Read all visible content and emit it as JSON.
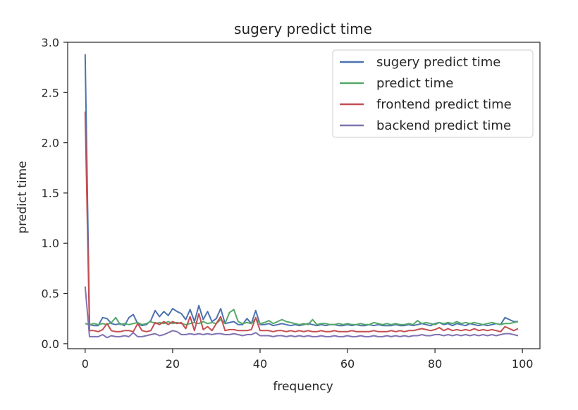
{
  "chart_data": {
    "type": "line",
    "title": "sugery predict time",
    "xlabel": "frequency",
    "ylabel": "predict time",
    "xlim": [
      -4,
      104
    ],
    "ylim": [
      -0.05,
      3.0
    ],
    "xticks": [
      0,
      20,
      40,
      60,
      80,
      100
    ],
    "yticks": [
      0.0,
      0.5,
      1.0,
      1.5,
      2.0,
      2.5,
      3.0
    ],
    "ytick_labels": [
      "0.0",
      "0.5",
      "1.0",
      "1.5",
      "2.0",
      "2.5",
      "3.0"
    ],
    "grid": false,
    "legend_position": "top-right",
    "x": [
      0,
      1,
      2,
      3,
      4,
      5,
      6,
      7,
      8,
      9,
      10,
      11,
      12,
      13,
      14,
      15,
      16,
      17,
      18,
      19,
      20,
      21,
      22,
      23,
      24,
      25,
      26,
      27,
      28,
      29,
      30,
      31,
      32,
      33,
      34,
      35,
      36,
      37,
      38,
      39,
      40,
      41,
      42,
      43,
      44,
      45,
      46,
      47,
      48,
      49,
      50,
      51,
      52,
      53,
      54,
      55,
      56,
      57,
      58,
      59,
      60,
      61,
      62,
      63,
      64,
      65,
      66,
      67,
      68,
      69,
      70,
      71,
      72,
      73,
      74,
      75,
      76,
      77,
      78,
      79,
      80,
      81,
      82,
      83,
      84,
      85,
      86,
      87,
      88,
      89,
      90,
      91,
      92,
      93,
      94,
      95,
      96,
      97,
      98,
      99
    ],
    "series": [
      {
        "name": "sugery predict time",
        "color": "#4c72b0",
        "values": [
          2.88,
          0.19,
          0.18,
          0.18,
          0.26,
          0.25,
          0.2,
          0.19,
          0.2,
          0.18,
          0.26,
          0.29,
          0.2,
          0.18,
          0.19,
          0.23,
          0.33,
          0.27,
          0.32,
          0.28,
          0.35,
          0.32,
          0.3,
          0.24,
          0.34,
          0.22,
          0.38,
          0.24,
          0.32,
          0.22,
          0.25,
          0.35,
          0.2,
          0.21,
          0.22,
          0.19,
          0.19,
          0.25,
          0.2,
          0.33,
          0.19,
          0.19,
          0.2,
          0.18,
          0.19,
          0.2,
          0.19,
          0.18,
          0.19,
          0.18,
          0.19,
          0.2,
          0.19,
          0.18,
          0.19,
          0.18,
          0.19,
          0.19,
          0.18,
          0.18,
          0.19,
          0.18,
          0.19,
          0.18,
          0.18,
          0.19,
          0.18,
          0.19,
          0.18,
          0.18,
          0.18,
          0.19,
          0.18,
          0.18,
          0.19,
          0.18,
          0.19,
          0.2,
          0.19,
          0.18,
          0.2,
          0.21,
          0.19,
          0.2,
          0.18,
          0.2,
          0.19,
          0.18,
          0.2,
          0.19,
          0.18,
          0.19,
          0.18,
          0.19,
          0.2,
          0.19,
          0.26,
          0.24,
          0.22,
          0.22
        ]
      },
      {
        "name": "predict time",
        "color": "#55a868",
        "values": [
          0.2,
          0.19,
          0.2,
          0.19,
          0.2,
          0.19,
          0.21,
          0.26,
          0.19,
          0.2,
          0.19,
          0.2,
          0.21,
          0.19,
          0.2,
          0.22,
          0.2,
          0.21,
          0.2,
          0.22,
          0.2,
          0.21,
          0.2,
          0.19,
          0.2,
          0.21,
          0.2,
          0.22,
          0.2,
          0.21,
          0.2,
          0.24,
          0.2,
          0.31,
          0.34,
          0.22,
          0.2,
          0.21,
          0.2,
          0.25,
          0.2,
          0.21,
          0.23,
          0.2,
          0.22,
          0.24,
          0.22,
          0.21,
          0.2,
          0.19,
          0.2,
          0.19,
          0.24,
          0.19,
          0.2,
          0.2,
          0.19,
          0.19,
          0.2,
          0.19,
          0.2,
          0.19,
          0.19,
          0.2,
          0.19,
          0.19,
          0.21,
          0.2,
          0.19,
          0.2,
          0.19,
          0.2,
          0.19,
          0.19,
          0.2,
          0.19,
          0.23,
          0.2,
          0.21,
          0.2,
          0.19,
          0.21,
          0.2,
          0.21,
          0.2,
          0.22,
          0.2,
          0.21,
          0.2,
          0.21,
          0.2,
          0.19,
          0.2,
          0.21,
          0.2,
          0.19,
          0.2,
          0.2,
          0.21,
          0.22
        ]
      },
      {
        "name": "frontend predict time",
        "color": "#c44e52",
        "values": [
          2.31,
          0.13,
          0.13,
          0.12,
          0.14,
          0.2,
          0.13,
          0.12,
          0.12,
          0.13,
          0.13,
          0.12,
          0.2,
          0.13,
          0.12,
          0.13,
          0.21,
          0.19,
          0.22,
          0.19,
          0.22,
          0.2,
          0.21,
          0.15,
          0.27,
          0.13,
          0.3,
          0.14,
          0.17,
          0.13,
          0.2,
          0.27,
          0.13,
          0.14,
          0.14,
          0.13,
          0.13,
          0.13,
          0.14,
          0.26,
          0.13,
          0.13,
          0.13,
          0.12,
          0.13,
          0.13,
          0.12,
          0.13,
          0.12,
          0.13,
          0.12,
          0.13,
          0.12,
          0.12,
          0.13,
          0.12,
          0.12,
          0.13,
          0.12,
          0.12,
          0.12,
          0.13,
          0.12,
          0.12,
          0.12,
          0.12,
          0.13,
          0.12,
          0.12,
          0.12,
          0.13,
          0.12,
          0.13,
          0.12,
          0.13,
          0.13,
          0.14,
          0.15,
          0.14,
          0.13,
          0.14,
          0.16,
          0.13,
          0.15,
          0.13,
          0.14,
          0.13,
          0.14,
          0.13,
          0.15,
          0.13,
          0.14,
          0.13,
          0.14,
          0.13,
          0.12,
          0.17,
          0.15,
          0.13,
          0.15
        ]
      },
      {
        "name": "backend predict time",
        "color": "#8172b2",
        "values": [
          0.57,
          0.07,
          0.07,
          0.07,
          0.09,
          0.06,
          0.08,
          0.07,
          0.07,
          0.08,
          0.07,
          0.11,
          0.07,
          0.07,
          0.08,
          0.09,
          0.1,
          0.08,
          0.09,
          0.11,
          0.13,
          0.12,
          0.09,
          0.09,
          0.1,
          0.09,
          0.1,
          0.09,
          0.1,
          0.09,
          0.1,
          0.1,
          0.09,
          0.09,
          0.1,
          0.09,
          0.08,
          0.09,
          0.09,
          0.11,
          0.08,
          0.08,
          0.08,
          0.07,
          0.08,
          0.08,
          0.07,
          0.08,
          0.07,
          0.08,
          0.07,
          0.08,
          0.07,
          0.07,
          0.08,
          0.07,
          0.07,
          0.08,
          0.07,
          0.07,
          0.08,
          0.07,
          0.07,
          0.08,
          0.07,
          0.07,
          0.08,
          0.07,
          0.07,
          0.08,
          0.07,
          0.08,
          0.07,
          0.08,
          0.07,
          0.08,
          0.08,
          0.09,
          0.08,
          0.08,
          0.09,
          0.09,
          0.08,
          0.09,
          0.08,
          0.09,
          0.08,
          0.09,
          0.08,
          0.09,
          0.08,
          0.09,
          0.08,
          0.09,
          0.08,
          0.09,
          0.1,
          0.1,
          0.09,
          0.08
        ]
      }
    ]
  }
}
